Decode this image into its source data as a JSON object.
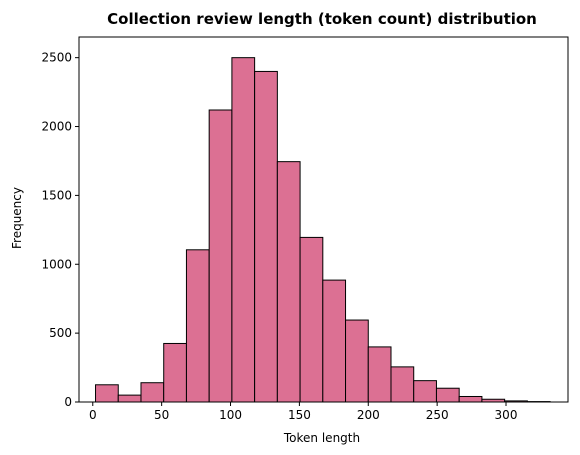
{
  "chart_data": {
    "type": "bar",
    "title": "Collection review length (token count) distribution",
    "xlabel": "Token length",
    "ylabel": "Frequency",
    "xlim": [
      -10,
      345
    ],
    "ylim": [
      0,
      2650
    ],
    "xticks": [
      0,
      50,
      100,
      150,
      200,
      250,
      300
    ],
    "yticks": [
      0,
      500,
      1000,
      1500,
      2000,
      2500
    ],
    "bin_edges": [
      2,
      18.5,
      35,
      51.5,
      68,
      84.5,
      101,
      117.5,
      134,
      150.5,
      167,
      183.5,
      200,
      216.5,
      233,
      249.5,
      266,
      282.5,
      299,
      315.5,
      332
    ],
    "values": [
      125,
      50,
      140,
      425,
      1105,
      2120,
      2500,
      2400,
      1745,
      1195,
      885,
      595,
      400,
      255,
      155,
      100,
      40,
      20,
      8,
      3
    ],
    "bar_color": "#dc7093",
    "edge_color": "#000000",
    "grid": false,
    "legend": "none"
  }
}
